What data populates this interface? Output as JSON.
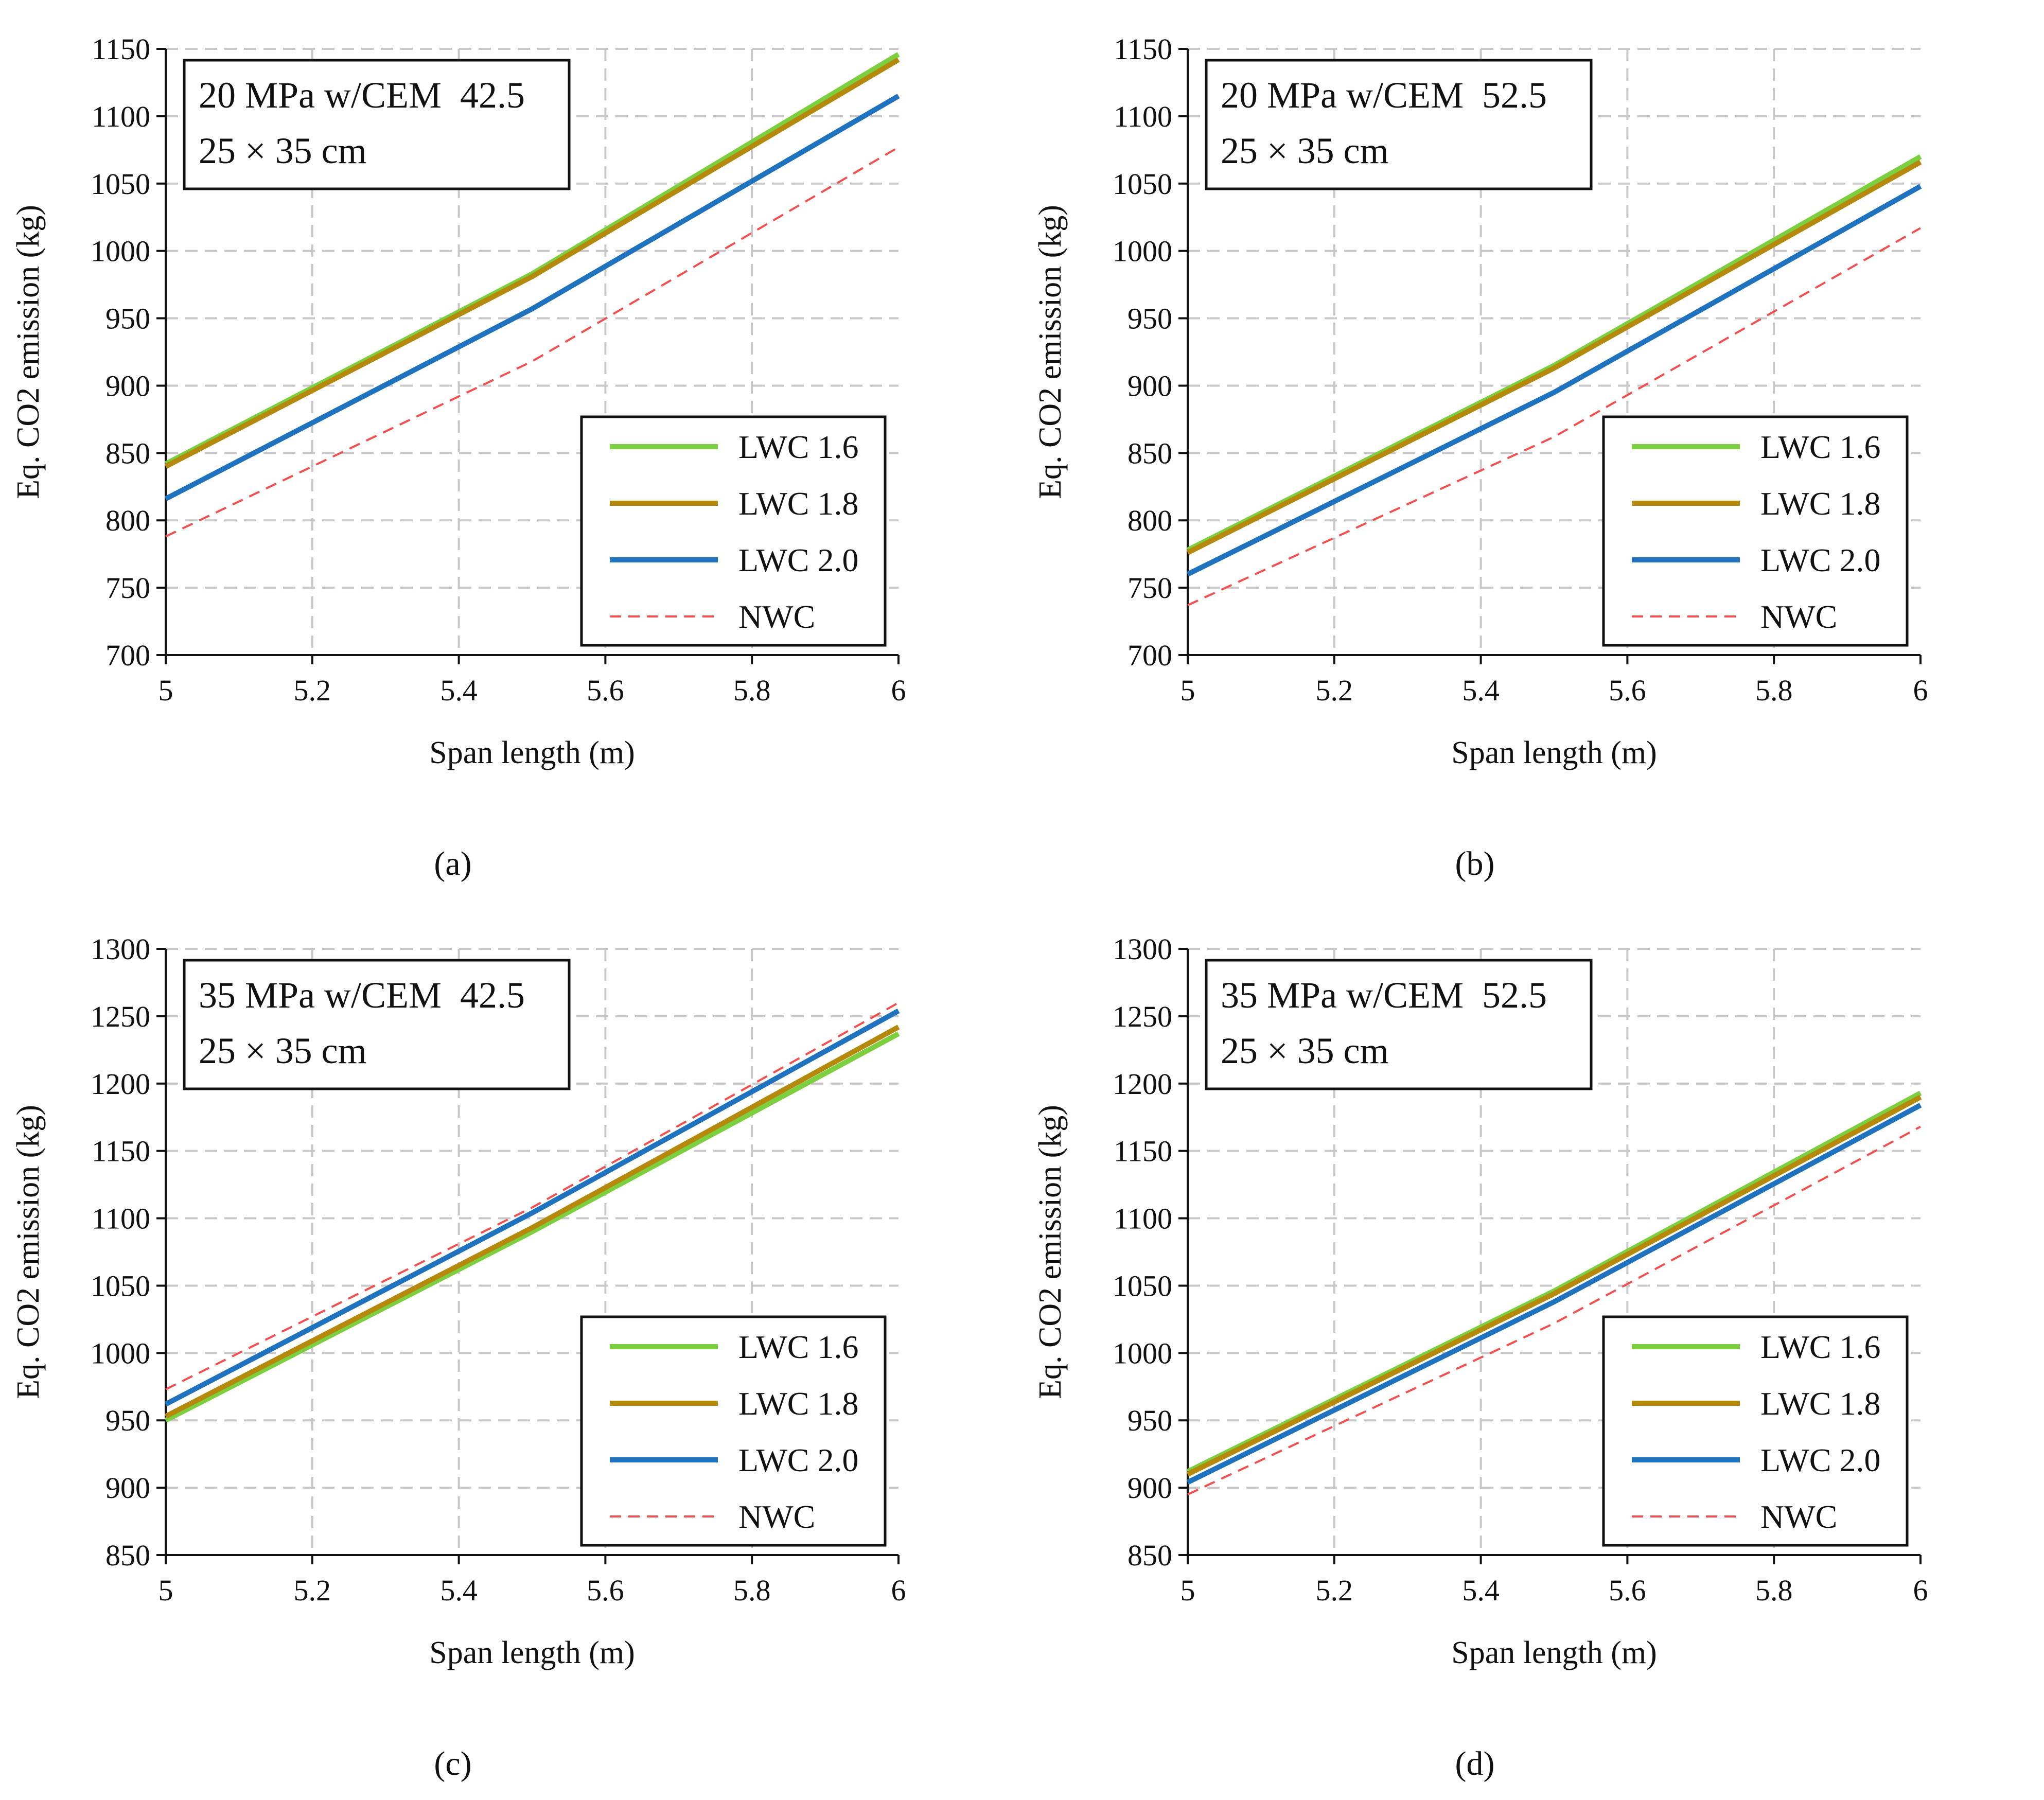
{
  "chart_data": [
    {
      "type": "line",
      "panel_label": "(a)",
      "annotation": [
        "20 MPa w/CEM  42.5",
        "25 × 35 cm"
      ],
      "xlabel": "Span length (m)",
      "ylabel": "Eq. CO2 emission (kg)",
      "xlim": [
        5,
        6
      ],
      "ylim": [
        700,
        1150
      ],
      "xticks": [
        5,
        5.2,
        5.4,
        5.6,
        5.8,
        6
      ],
      "xtick_labels": [
        "5",
        "5.2",
        "5.4",
        "5.6",
        "5.8",
        "6"
      ],
      "yticks": [
        700,
        750,
        800,
        850,
        900,
        950,
        1000,
        1050,
        1100,
        1150
      ],
      "ytick_labels": [
        "700",
        "750",
        "800",
        "850",
        "900",
        "950",
        "1000",
        "1050",
        "1100",
        "1150"
      ],
      "grid": true,
      "legend_position": "bottom-right",
      "x": [
        5,
        5.5,
        6
      ],
      "series": [
        {
          "name": "LWC 1.6",
          "values": [
            842,
            983,
            1146
          ],
          "color": "#7ccf3e",
          "style": "solid"
        },
        {
          "name": "LWC 1.8",
          "values": [
            840,
            981,
            1142
          ],
          "color": "#b5890c",
          "style": "solid"
        },
        {
          "name": "LWC 2.0",
          "values": [
            816,
            957,
            1115
          ],
          "color": "#1f72bd",
          "style": "solid"
        },
        {
          "name": "NWC",
          "values": [
            788,
            918,
            1077
          ],
          "color": "#f25050",
          "style": "dashed"
        }
      ]
    },
    {
      "type": "line",
      "panel_label": "(b)",
      "annotation": [
        "20 MPa w/CEM  52.5",
        "25 × 35 cm"
      ],
      "xlabel": "Span length (m)",
      "ylabel": "Eq. CO2 emission (kg)",
      "xlim": [
        5,
        6
      ],
      "ylim": [
        700,
        1150
      ],
      "xticks": [
        5,
        5.2,
        5.4,
        5.6,
        5.8,
        6
      ],
      "xtick_labels": [
        "5",
        "5.2",
        "5.4",
        "5.6",
        "5.8",
        "6"
      ],
      "yticks": [
        700,
        750,
        800,
        850,
        900,
        950,
        1000,
        1050,
        1100,
        1150
      ],
      "ytick_labels": [
        "700",
        "750",
        "800",
        "850",
        "900",
        "950",
        "1000",
        "1050",
        "1100",
        "1150"
      ],
      "grid": true,
      "legend_position": "bottom-right",
      "x": [
        5,
        5.5,
        6
      ],
      "series": [
        {
          "name": "LWC 1.6",
          "values": [
            778,
            915,
            1070
          ],
          "color": "#7ccf3e",
          "style": "solid"
        },
        {
          "name": "LWC 1.8",
          "values": [
            776,
            913,
            1066
          ],
          "color": "#b5890c",
          "style": "solid"
        },
        {
          "name": "LWC 2.0",
          "values": [
            760,
            895,
            1048
          ],
          "color": "#1f72bd",
          "style": "solid"
        },
        {
          "name": "NWC",
          "values": [
            737,
            862,
            1017
          ],
          "color": "#f25050",
          "style": "dashed"
        }
      ]
    },
    {
      "type": "line",
      "panel_label": "(c)",
      "annotation": [
        "35 MPa w/CEM  42.5",
        "25 × 35 cm"
      ],
      "xlabel": "Span length (m)",
      "ylabel": "Eq. CO2 emission (kg)",
      "xlim": [
        5,
        6
      ],
      "ylim": [
        850,
        1300
      ],
      "xticks": [
        5,
        5.2,
        5.4,
        5.6,
        5.8,
        6
      ],
      "xtick_labels": [
        "5",
        "5.2",
        "5.4",
        "5.6",
        "5.8",
        "6"
      ],
      "yticks": [
        850,
        900,
        950,
        1000,
        1050,
        1100,
        1150,
        1200,
        1250,
        1300
      ],
      "ytick_labels": [
        "850",
        "900",
        "950",
        "1000",
        "1050",
        "1100",
        "1150",
        "1200",
        "1250",
        "1300"
      ],
      "grid": true,
      "legend_position": "bottom-right",
      "x": [
        5,
        5.5,
        6
      ],
      "series": [
        {
          "name": "LWC 1.6",
          "values": [
            950,
            1090,
            1237
          ],
          "color": "#7ccf3e",
          "style": "solid"
        },
        {
          "name": "LWC 1.8",
          "values": [
            953,
            1093,
            1242
          ],
          "color": "#b5890c",
          "style": "solid"
        },
        {
          "name": "LWC 2.0",
          "values": [
            962,
            1104,
            1254
          ],
          "color": "#1f72bd",
          "style": "solid"
        },
        {
          "name": "NWC",
          "values": [
            973,
            1108,
            1260
          ],
          "color": "#f25050",
          "style": "dashed"
        }
      ]
    },
    {
      "type": "line",
      "panel_label": "(d)",
      "annotation": [
        "35 MPa w/CEM  52.5",
        "25 × 35 cm"
      ],
      "xlabel": "Span length (m)",
      "ylabel": "Eq. CO2 emission (kg)",
      "xlim": [
        5,
        6
      ],
      "ylim": [
        850,
        1300
      ],
      "xticks": [
        5,
        5.2,
        5.4,
        5.6,
        5.8,
        6
      ],
      "xtick_labels": [
        "5",
        "5.2",
        "5.4",
        "5.6",
        "5.8",
        "6"
      ],
      "yticks": [
        850,
        900,
        950,
        1000,
        1050,
        1100,
        1150,
        1200,
        1250,
        1300
      ],
      "ytick_labels": [
        "850",
        "900",
        "950",
        "1000",
        "1050",
        "1100",
        "1150",
        "1200",
        "1250",
        "1300"
      ],
      "grid": true,
      "legend_position": "bottom-right",
      "x": [
        5,
        5.5,
        6
      ],
      "series": [
        {
          "name": "LWC 1.6",
          "values": [
            912,
            1046,
            1193
          ],
          "color": "#7ccf3e",
          "style": "solid"
        },
        {
          "name": "LWC 1.8",
          "values": [
            910,
            1044,
            1190
          ],
          "color": "#b5890c",
          "style": "solid"
        },
        {
          "name": "LWC 2.0",
          "values": [
            904,
            1038,
            1184
          ],
          "color": "#1f72bd",
          "style": "solid"
        },
        {
          "name": "NWC",
          "values": [
            895,
            1022,
            1168
          ],
          "color": "#f25050",
          "style": "dashed"
        }
      ]
    }
  ]
}
